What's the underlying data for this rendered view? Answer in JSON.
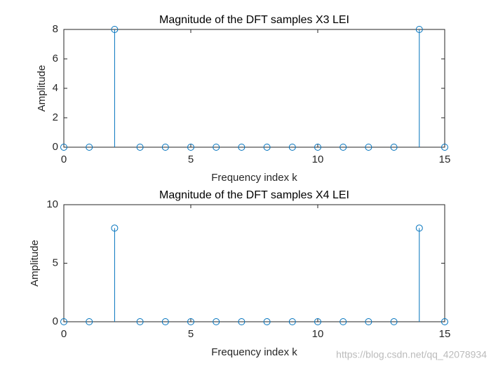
{
  "chart_data": [
    {
      "type": "stem",
      "title": "Magnitude of the DFT samples X3 LEI",
      "x_label": "Frequency index k",
      "y_label": "Amplitude",
      "x": [
        0,
        1,
        2,
        3,
        4,
        5,
        6,
        7,
        8,
        9,
        10,
        11,
        12,
        13,
        14,
        15
      ],
      "values": [
        0,
        0,
        8,
        0,
        0,
        0,
        0,
        0,
        0,
        0,
        0,
        0,
        0,
        0,
        8,
        0
      ],
      "color": "#0072bd",
      "xlim": [
        0,
        15
      ],
      "xticks": [
        0,
        5,
        10,
        15
      ],
      "ylim": [
        0,
        8
      ],
      "yticks": [
        0,
        2,
        4,
        6,
        8
      ]
    },
    {
      "type": "stem",
      "title": "Magnitude of the DFT samples X4 LEI",
      "x_label": "Frequency index k",
      "y_label": "Amplitude",
      "x": [
        0,
        1,
        2,
        3,
        4,
        5,
        6,
        7,
        8,
        9,
        10,
        11,
        12,
        13,
        14,
        15
      ],
      "values": [
        0,
        0,
        8,
        0,
        0,
        0,
        0,
        0,
        0,
        0,
        0,
        0,
        0,
        0,
        8,
        0
      ],
      "color": "#0072bd",
      "xlim": [
        0,
        15
      ],
      "xticks": [
        0,
        5,
        10,
        15
      ],
      "ylim": [
        0,
        10
      ],
      "yticks": [
        0,
        5,
        10
      ]
    }
  ],
  "watermark": "https://blog.csdn.net/qq_42078934"
}
